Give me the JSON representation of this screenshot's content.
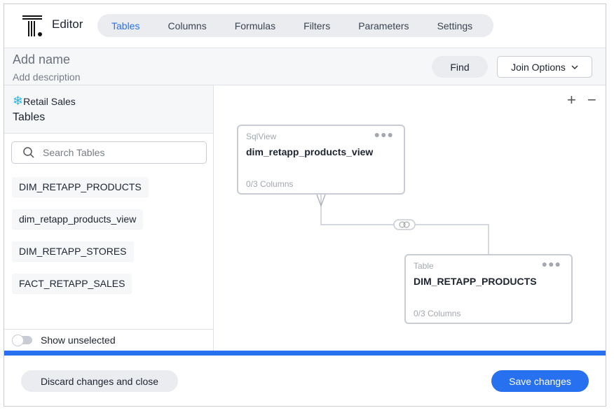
{
  "header": {
    "title": "Editor",
    "tabs": [
      "Tables",
      "Columns",
      "Formulas",
      "Filters",
      "Parameters",
      "Settings"
    ],
    "active_tab": "Tables"
  },
  "namebar": {
    "name_placeholder": "Add name",
    "description_placeholder": "Add description",
    "find_label": "Find",
    "join_label": "Join Options"
  },
  "left": {
    "source": "Retail Sales",
    "heading": "Tables",
    "search_placeholder": "Search Tables",
    "items": [
      "DIM_RETAPP_PRODUCTS",
      "dim_retapp_products_view",
      "DIM_RETAPP_STORES",
      "FACT_RETAPP_SALES"
    ],
    "show_unselected": "Show unselected",
    "show_unselected_on": false
  },
  "canvas": {
    "zoom_in": "+",
    "zoom_out": "−",
    "cards": [
      {
        "type": "SqlView",
        "name": "dim_retapp_products_view",
        "columns": "0/3 Columns"
      },
      {
        "type": "Table",
        "name": "DIM_RETAPP_PRODUCTS",
        "columns": "0/3 Columns"
      }
    ]
  },
  "footer": {
    "discard_label": "Discard changes and close",
    "save_label": "Save changes"
  },
  "colors": {
    "accent": "#2770ef",
    "snowflake": "#29b5e8"
  }
}
